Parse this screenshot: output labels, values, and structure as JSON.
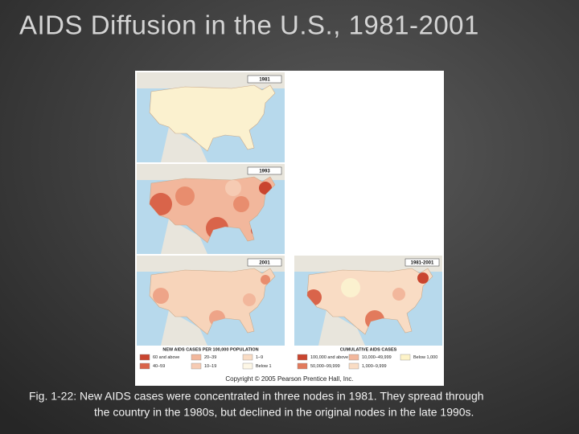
{
  "title": "AIDS Diffusion in the U.S., 1981-2001",
  "maps": [
    {
      "label": "1981"
    },
    {
      "label": "1993"
    },
    {
      "label": "2001"
    },
    {
      "label": "1981-2001"
    }
  ],
  "legends": [
    {
      "title": "NEW AIDS CASES PER 100,000 POPULATION",
      "items": [
        "60 and above",
        "20–39",
        "1–9",
        "40–59",
        "10–19",
        "Below 1"
      ]
    },
    {
      "title": "CUMULATIVE AIDS CASES",
      "items": [
        "100,000 and above",
        "10,000–49,999",
        "Below 1,000",
        "50,000–99,999",
        "1,000–9,999"
      ]
    }
  ],
  "copyright": "Copyright © 2005 Pearson Prentice Hall, Inc.",
  "caption": [
    "Fig. 1-22: New AIDS cases were concentrated in three nodes in 1981. They spread through",
    "the country in the 1980s, but declined in the original nodes in the late 1990s."
  ]
}
